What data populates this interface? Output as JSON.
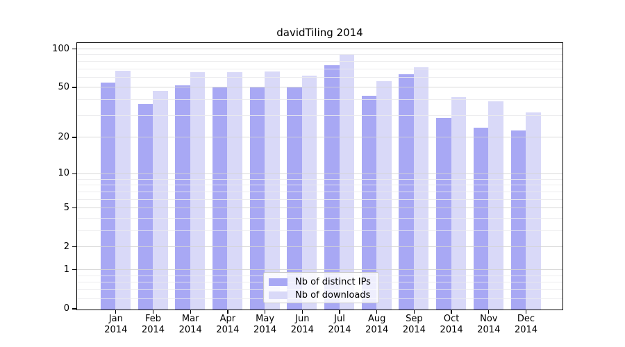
{
  "chart_data": {
    "type": "bar",
    "title": "davidTiling 2014",
    "categories": [
      "Jan",
      "Feb",
      "Mar",
      "Apr",
      "May",
      "Jun",
      "Jul",
      "Aug",
      "Sep",
      "Oct",
      "Nov",
      "Dec"
    ],
    "year_label": "2014",
    "series": [
      {
        "name": "Nb of distinct IPs",
        "color": "#a8a8f4",
        "values": [
          55,
          37,
          52,
          50,
          50,
          50,
          75,
          43,
          64,
          29,
          24,
          23
        ]
      },
      {
        "name": "Nb of downloads",
        "color": "#d9d9f8",
        "values": [
          68,
          47,
          66,
          66,
          67,
          62,
          92,
          56,
          72,
          42,
          39,
          32
        ]
      }
    ],
    "y_axis": {
      "scale": "symlog",
      "ticks": [
        0,
        1,
        2,
        5,
        10,
        20,
        50,
        100
      ],
      "minor_gridlines": [
        0.2,
        0.4,
        0.6,
        0.8,
        3,
        4,
        6,
        7,
        8,
        9,
        30,
        40,
        60,
        70,
        80,
        90
      ],
      "ymax": 112
    },
    "legend": {
      "position": "lower-center",
      "entries": [
        "Nb of distinct IPs",
        "Nb of downloads"
      ]
    },
    "grid": "major-and-minor",
    "xlabel": "",
    "ylabel": ""
  },
  "colors": {
    "bar_distinct_ips": "#a8a8f4",
    "bar_downloads": "#d9d9f8",
    "grid_major": "#d4d4d4",
    "grid_minor": "#eaeaec",
    "axis_frame": "#000000",
    "legend_border": "#c9c9c9"
  }
}
